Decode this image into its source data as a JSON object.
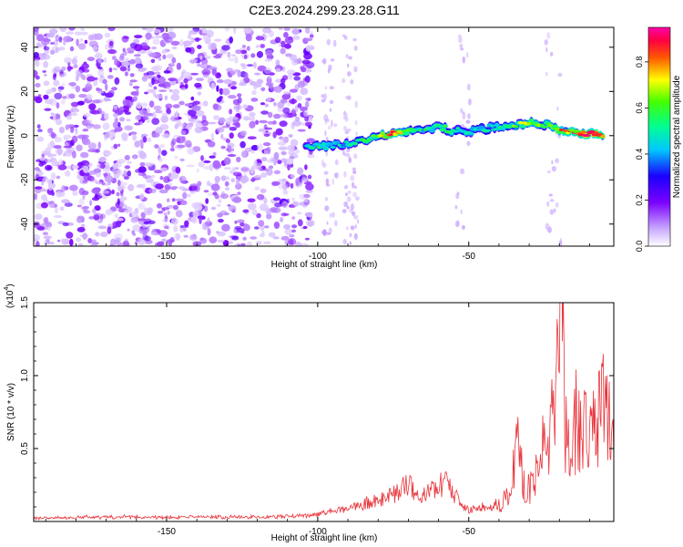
{
  "title": "C2E3.2024.299.23.28.G11",
  "colors": {
    "line": "#e8333a",
    "spec_purple": "#8a2be2",
    "axis": "#000000"
  },
  "chart_data": [
    {
      "type": "heatmap",
      "xlabel": "Height of straight line (km)",
      "ylabel": "Frequency (Hz)",
      "xlim": [
        -194,
        -2
      ],
      "ylim": [
        -50,
        49
      ],
      "xticks": [
        -150,
        -100,
        -50
      ],
      "xtick_labels": [
        "-150",
        "-100",
        "-50"
      ],
      "yticks": [
        -40,
        -20,
        0,
        20,
        40
      ],
      "ytick_labels": [
        "-40",
        "-20",
        "0",
        "20",
        "40"
      ],
      "colorbar": {
        "label": "Normalized spectral amplitude",
        "range": [
          0,
          0.95
        ],
        "ticks": [
          0,
          0.2,
          0.4,
          0.6,
          0.8
        ],
        "tick_labels": [
          "0.0",
          "0.2",
          "0.4",
          "0.6",
          "0.8"
        ],
        "colormap": "rainbow (white-purple-blue-cyan-green-yellow-red-magenta)"
      },
      "noise_region_x": [
        -194,
        -102
      ],
      "ridge": [
        {
          "x": -104,
          "f": -5,
          "a": 0.4
        },
        {
          "x": -98,
          "f": -5,
          "a": 0.55
        },
        {
          "x": -92,
          "f": -4,
          "a": 0.45
        },
        {
          "x": -86,
          "f": -3,
          "a": 0.5
        },
        {
          "x": -80,
          "f": 0,
          "a": 0.6
        },
        {
          "x": -75,
          "f": 1,
          "a": 0.85
        },
        {
          "x": -70,
          "f": 2,
          "a": 0.6
        },
        {
          "x": -65,
          "f": 3,
          "a": 0.5
        },
        {
          "x": -60,
          "f": 4,
          "a": 0.55
        },
        {
          "x": -55,
          "f": 2,
          "a": 0.5
        },
        {
          "x": -50,
          "f": 2,
          "a": 0.45
        },
        {
          "x": -45,
          "f": 3,
          "a": 0.5
        },
        {
          "x": -40,
          "f": 4,
          "a": 0.55
        },
        {
          "x": -35,
          "f": 5,
          "a": 0.6
        },
        {
          "x": -30,
          "f": 6,
          "a": 0.65
        },
        {
          "x": -25,
          "f": 5,
          "a": 0.6
        },
        {
          "x": -20,
          "f": 3,
          "a": 0.75
        },
        {
          "x": -15,
          "f": 2,
          "a": 0.85
        },
        {
          "x": -10,
          "f": 1,
          "a": 0.9
        },
        {
          "x": -5,
          "f": 0,
          "a": 0.9
        }
      ]
    },
    {
      "type": "line",
      "xlabel": "Height of straight line (km)",
      "ylabel": "SNR (10 * v/v)",
      "y_multiplier_label": "(x10",
      "y_multiplier_exp": "4",
      "y_multiplier_close": ")",
      "xlim": [
        -194,
        -2
      ],
      "ylim": [
        0,
        1.5
      ],
      "xticks": [
        -150,
        -100,
        -50
      ],
      "xtick_labels": [
        "-150",
        "-100",
        "-50"
      ],
      "yticks": [
        0.5,
        1.0,
        1.5
      ],
      "ytick_labels": [
        "0.5",
        "1.0",
        "1.5"
      ],
      "series": [
        {
          "x": [
            -194,
            -180,
            -160,
            -140,
            -120,
            -105,
            -100,
            -95,
            -90,
            -85,
            -80,
            -75,
            -70,
            -68,
            -65,
            -60,
            -58,
            -55,
            -50,
            -45,
            -40,
            -36,
            -34,
            -32,
            -30,
            -28,
            -26,
            -24,
            -22,
            -20,
            -19,
            -18,
            -16,
            -14,
            -12,
            -10,
            -8,
            -6,
            -4,
            -2
          ],
          "y": [
            0.02,
            0.03,
            0.03,
            0.03,
            0.03,
            0.04,
            0.05,
            0.07,
            0.09,
            0.12,
            0.14,
            0.18,
            0.26,
            0.2,
            0.17,
            0.24,
            0.28,
            0.18,
            0.08,
            0.1,
            0.12,
            0.2,
            0.62,
            0.3,
            0.22,
            0.28,
            0.55,
            0.38,
            0.72,
            1.05,
            1.5,
            0.7,
            0.42,
            0.78,
            0.62,
            0.7,
            0.72,
            0.85,
            0.78,
            0.58
          ]
        }
      ]
    }
  ]
}
